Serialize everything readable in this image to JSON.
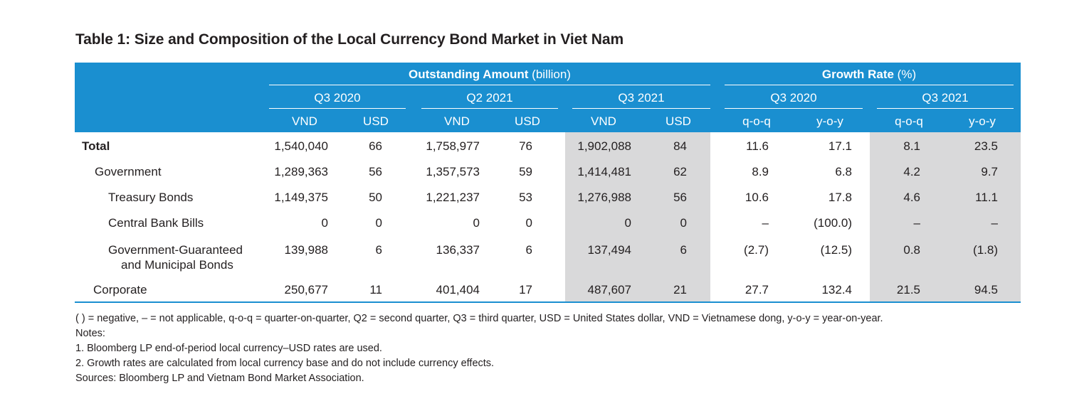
{
  "title": "Table 1: Size and Composition of the Local Currency Bond Market in Viet Nam",
  "header": {
    "group1": {
      "bold": "Outstanding Amount",
      "normal": "(billion)"
    },
    "group2": {
      "bold": "Growth Rate",
      "normal": "(%)"
    },
    "periods": [
      "Q3 2020",
      "Q2 2021",
      "Q3 2021",
      "Q3 2020",
      "Q3 2021"
    ],
    "columns": [
      "VND",
      "USD",
      "VND",
      "USD",
      "VND",
      "USD",
      "q-o-q",
      "y-o-y",
      "q-o-q",
      "y-o-y"
    ]
  },
  "rows": [
    {
      "label": "Total",
      "values": [
        "1,540,040",
        "66",
        "1,758,977",
        "76",
        "1,902,088",
        "84",
        "11.6",
        "17.1",
        "8.1",
        "23.5"
      ]
    },
    {
      "label": "Government",
      "values": [
        "1,289,363",
        "56",
        "1,357,573",
        "59",
        "1,414,481",
        "62",
        "8.9",
        "6.8",
        "4.2",
        "9.7"
      ]
    },
    {
      "label": "Treasury Bonds",
      "values": [
        "1,149,375",
        "50",
        "1,221,237",
        "53",
        "1,276,988",
        "56",
        "10.6",
        "17.8",
        "4.6",
        "11.1"
      ]
    },
    {
      "label": "Central Bank Bills",
      "values": [
        "0",
        "0",
        "0",
        "0",
        "0",
        "0",
        "–",
        "(100.0)",
        "–",
        "–"
      ]
    },
    {
      "label": "Government-Guaranteed",
      "label2": "and Municipal Bonds",
      "values": [
        "139,988",
        "6",
        "136,337",
        "6",
        "137,494",
        "6",
        "(2.7)",
        "(12.5)",
        "0.8",
        "(1.8)"
      ]
    },
    {
      "label": "Corporate",
      "values": [
        "250,677",
        "11",
        "401,404",
        "17",
        "487,607",
        "21",
        "27.7",
        "132.4",
        "21.5",
        "94.5"
      ]
    }
  ],
  "notes": [
    "( ) = negative, – = not applicable, q-o-q = quarter-on-quarter, Q2 = second quarter, Q3 = third quarter, USD = United States dollar, VND = Vietnamese dong, y-o-y = year-on-year.",
    "Notes:",
    "1.  Bloomberg LP end-of-period local currency–USD rates are used.",
    "2.  Growth rates are calculated from local currency base and do not include currency effects.",
    "Sources: Bloomberg LP and Vietnam Bond Market Association."
  ],
  "colors": {
    "header_bg": "#1a8fd0",
    "shade": "#d9d9da",
    "header_text": "#ffffff"
  }
}
